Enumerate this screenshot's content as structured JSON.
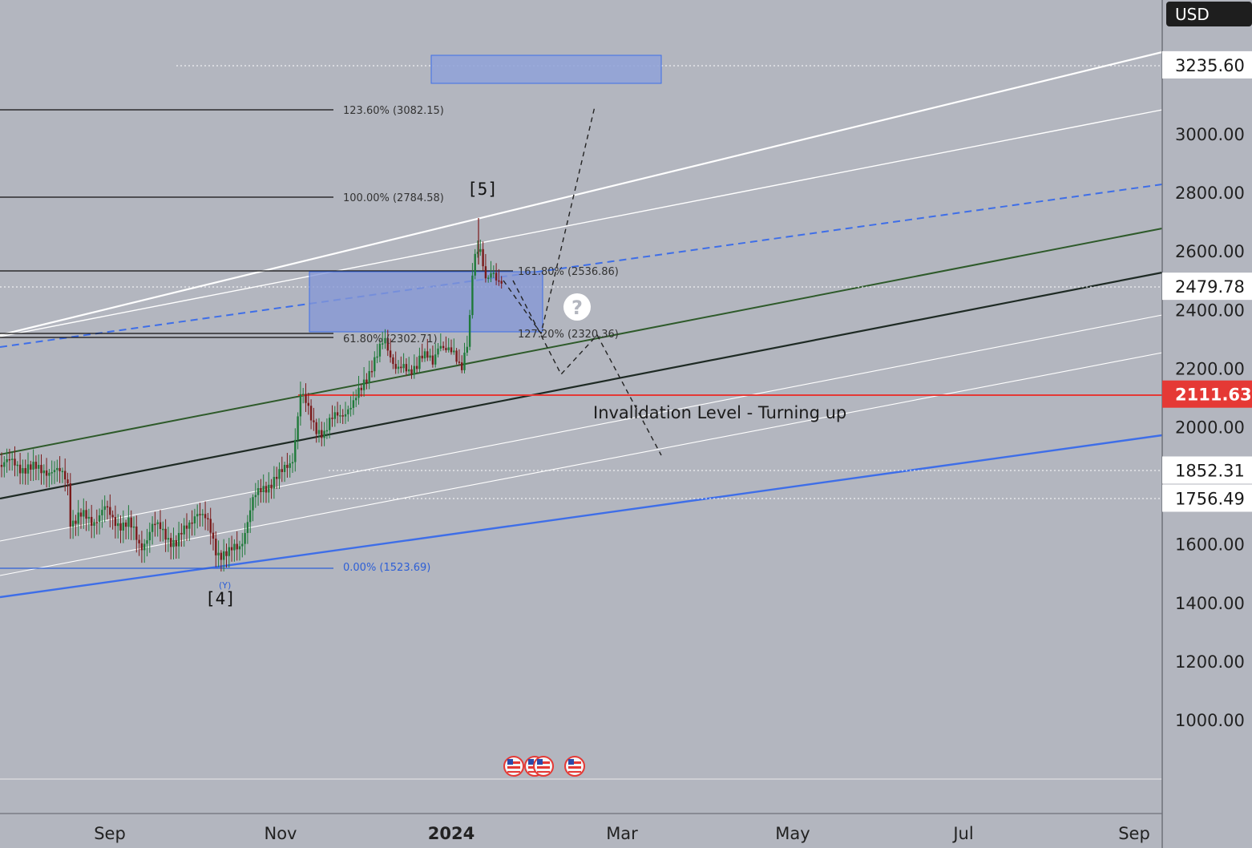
{
  "axis": {
    "currency": "USD",
    "price_ticks": [
      "3000.00",
      "2800.00",
      "2600.00",
      "2400.00",
      "2200.00",
      "2000.00",
      "1600.00",
      "1400.00",
      "1200.00",
      "1000.00"
    ],
    "time_ticks": [
      "Sep",
      "Nov",
      "2024",
      "Mar",
      "May",
      "Jul",
      "Sep"
    ]
  },
  "price_tags": [
    {
      "label": "3235.60",
      "style": "white"
    },
    {
      "label": "2479.78",
      "style": "white"
    },
    {
      "label": "2111.63",
      "style": "red"
    },
    {
      "label": "1852.31",
      "style": "white"
    },
    {
      "label": "1756.49",
      "style": "white"
    }
  ],
  "fib_levels": [
    {
      "label": "123.60% (3082.15)",
      "color": "#111111"
    },
    {
      "label": "100.00% (2784.58)",
      "color": "#111111"
    },
    {
      "label": "161.80% (2536.86)",
      "color": "#111111"
    },
    {
      "label": "61.80% (2302.71)",
      "color": "#111111"
    },
    {
      "label": "127.20% (2320.36)",
      "color": "#111111"
    },
    {
      "label": "0.00% (1523.69)",
      "color": "#2d5fd6"
    }
  ],
  "annotations": {
    "wave5": "[5]",
    "wave4": "[4]",
    "waveY": "(Y)",
    "invalidation": "Invalidation Level - Turning up",
    "question": "?"
  },
  "chart_data": {
    "type": "candlestick",
    "title": "",
    "ylabel": "USD",
    "ylim": [
      800,
      3300
    ],
    "x_ticks": [
      "Sep",
      "Nov",
      "2024",
      "Mar",
      "May",
      "Jul",
      "Sep"
    ],
    "last_price": 2479.78,
    "invalidation_level": 2111.63,
    "levels": [
      3235.6,
      2479.78,
      2111.63,
      1852.31,
      1756.49
    ],
    "fibonacci": [
      {
        "ratio": "123.60%",
        "price": 3082.15
      },
      {
        "ratio": "100.00%",
        "price": 2784.58
      },
      {
        "ratio": "161.80%",
        "price": 2536.86
      },
      {
        "ratio": "61.80%",
        "price": 2302.71
      },
      {
        "ratio": "127.20%",
        "price": 2320.36
      },
      {
        "ratio": "0.00%",
        "price": 1523.69
      }
    ],
    "wave_labels": [
      "[4]",
      "(Y)",
      "[5]"
    ],
    "colors": {
      "up": "#1f7a3a",
      "down": "#7a1a1a",
      "invalidation": "#e53935",
      "channel_blue": "#3e6ee8",
      "channel_green": "#2e5a2a"
    }
  }
}
